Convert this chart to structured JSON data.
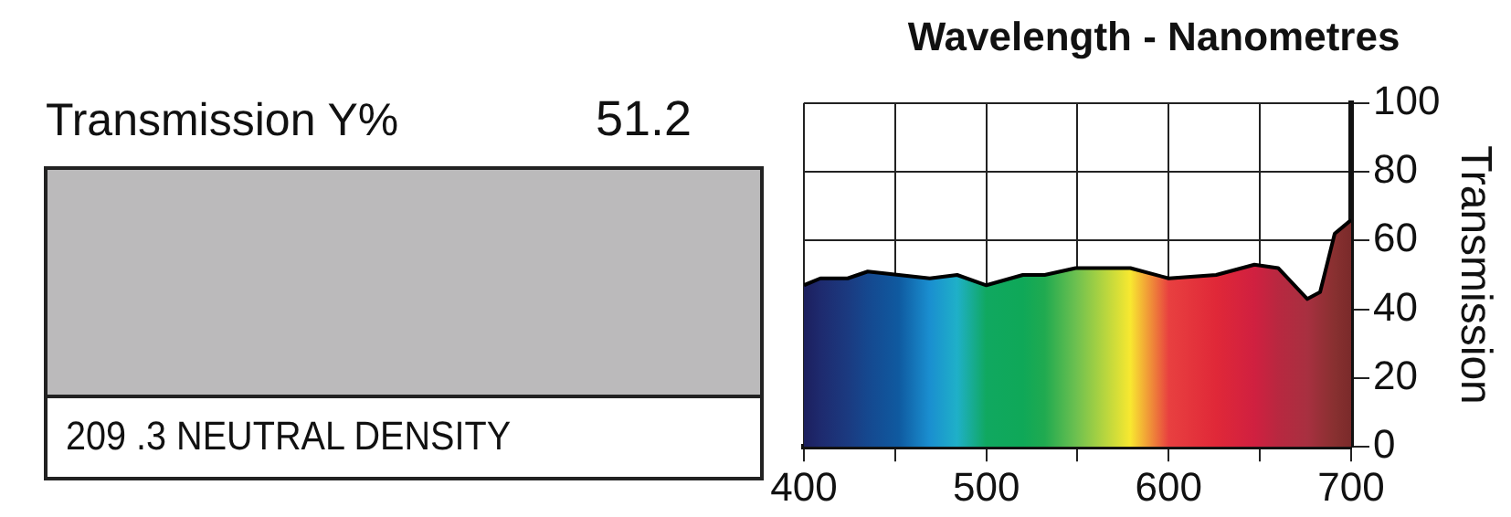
{
  "chart_data": {
    "type": "area",
    "title": "Wavelength - Nanometres",
    "ylabel": "Transmission",
    "annotations": [
      "Transmission Y%",
      "51.2",
      "209 .3 NEUTRAL DENSITY"
    ],
    "x": [
      400,
      409,
      424,
      435,
      452,
      469,
      484,
      500,
      520,
      532,
      549,
      579,
      600,
      626,
      647,
      660,
      676,
      683,
      691,
      700
    ],
    "series": [
      {
        "color": "#000000",
        "values": [
          47,
          49,
          49,
          51,
          50,
          49,
          50,
          47,
          50,
          50,
          52,
          52,
          49,
          50,
          53,
          52,
          43,
          45,
          62,
          66
        ],
        "colors": [
          "#1c1f5e",
          "#1e2a6e",
          "#1b3a80",
          "#15488f",
          "#0f5aa0",
          "#1a8fd0",
          "#1fb0c8",
          "#10a860",
          "#0fa858",
          "#20aa50",
          "#6cc050",
          "#f8e830",
          "#e84040",
          "#e02838",
          "#d02040",
          "#b82840",
          "#a83040",
          "#983038",
          "#883030",
          "#7a2a2a"
        ]
      }
    ],
    "xlim": [
      400,
      700
    ],
    "xticks": [
      400,
      {
        "value": 450,
        "label": null
      },
      500,
      {
        "value": 550,
        "label": null
      },
      600,
      {
        "value": 650,
        "label": null
      },
      700
    ],
    "ylim": [
      0,
      100
    ],
    "yticks": [
      0,
      20,
      40,
      60,
      80,
      100
    ],
    "grid": true
  }
}
